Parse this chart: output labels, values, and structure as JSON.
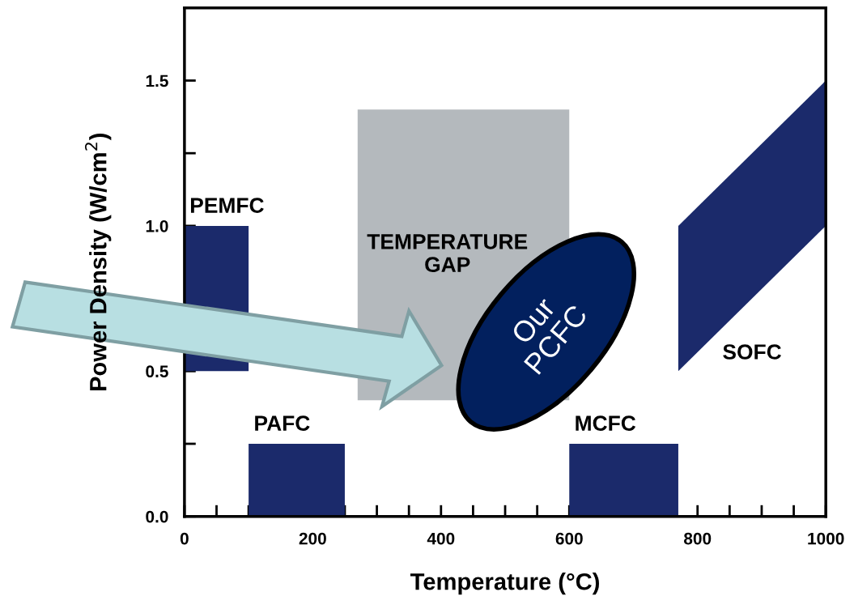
{
  "chart_data": {
    "type": "area",
    "xlabel": "Temperature (°C)",
    "ylabel": "Power Density (W/cm$^{2}$)",
    "xlim": [
      0,
      1000
    ],
    "ylim": [
      0,
      1.75
    ],
    "xticks": [
      0,
      {
        "value": 50,
        "label": null
      },
      {
        "value": 100,
        "label": null
      },
      {
        "value": 150,
        "label": null
      },
      200,
      {
        "value": 250,
        "label": null
      },
      {
        "value": 300,
        "label": null
      },
      {
        "value": 350,
        "label": null
      },
      400,
      {
        "value": 450,
        "label": null
      },
      {
        "value": 500,
        "label": null
      },
      {
        "value": 550,
        "label": null
      },
      600,
      {
        "value": 650,
        "label": null
      },
      {
        "value": 700,
        "label": null
      },
      {
        "value": 750,
        "label": null
      },
      800,
      {
        "value": 850,
        "label": null
      },
      {
        "value": 900,
        "label": null
      },
      {
        "value": 950,
        "label": null
      },
      1000
    ],
    "yticks": [
      {
        "value": 0,
        "label": "0.0"
      },
      {
        "value": 0.25,
        "label": null
      },
      0.5,
      {
        "value": 0.75,
        "label": null
      },
      {
        "value": 1,
        "label": "1.0"
      },
      {
        "value": 1.25,
        "label": null
      },
      1.5
    ],
    "grid": false,
    "legend": false,
    "series": [
      {
        "name": "TEMPERATURE\nGAP",
        "color": "#b4b9bd",
        "x": [
          270,
          270,
          600,
          600
        ],
        "values": [
          0.4,
          1.4,
          1.4,
          0.4
        ]
      },
      {
        "name": "PEMFC",
        "color": "#1b2a6b",
        "x": [
          0,
          0,
          100,
          100
        ],
        "values": [
          0.5,
          1.0,
          1.0,
          0.5
        ]
      },
      {
        "name": "PAFC",
        "color": "#1b2a6b",
        "x": [
          100,
          100,
          250,
          250
        ],
        "values": [
          0,
          0.25,
          0.25,
          0
        ]
      },
      {
        "name": "MCFC",
        "color": "#1b2a6b",
        "x": [
          600,
          600,
          770,
          770
        ],
        "values": [
          0,
          0.25,
          0.25,
          0
        ]
      },
      {
        "name": "SOFC",
        "color": "#1b2a6b",
        "x": [
          770,
          770,
          1000,
          1000
        ],
        "values": [
          0.5,
          1.0,
          1.5,
          1.0
        ]
      }
    ],
    "annotations": [
      "Our\nPCFC"
    ]
  }
}
